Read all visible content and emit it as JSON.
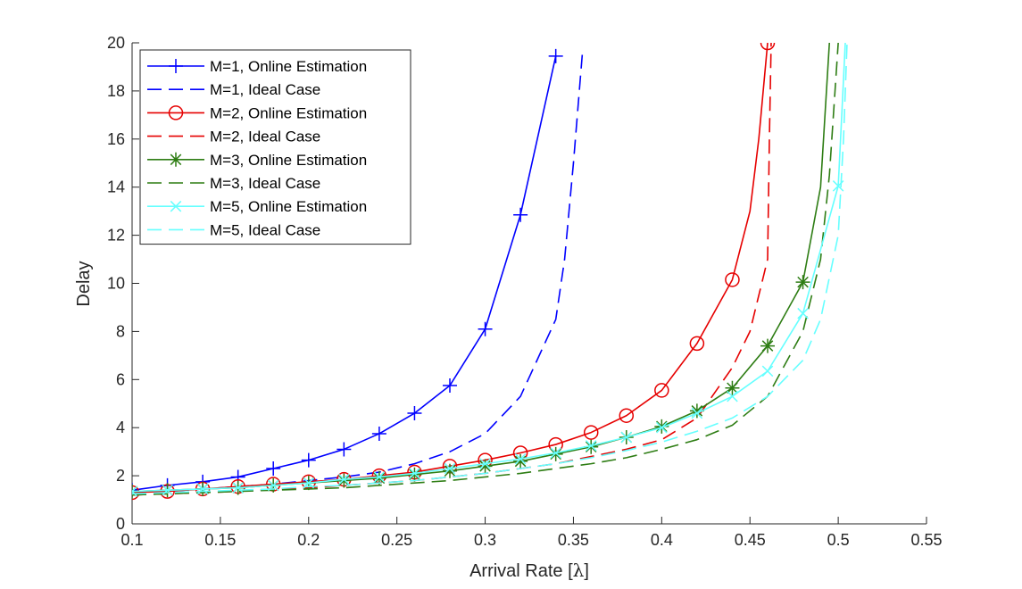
{
  "chart_data": {
    "type": "line",
    "title": "",
    "xlabel": "Arrival Rate [",
    "xlabel_symbol": "λ",
    "xlabel_suffix": "]",
    "ylabel": "Delay",
    "xlim": [
      0.1,
      0.55
    ],
    "ylim": [
      0,
      20
    ],
    "xticks": [
      0.1,
      0.15,
      0.2,
      0.25,
      0.3,
      0.35,
      0.4,
      0.45,
      0.5,
      0.55
    ],
    "xtick_labels": [
      "0.1",
      "0.15",
      "0.2",
      "0.25",
      "0.3",
      "0.35",
      "0.4",
      "0.45",
      "0.5",
      "0.55"
    ],
    "yticks": [
      0,
      2,
      4,
      6,
      8,
      10,
      12,
      14,
      16,
      18,
      20
    ],
    "ytick_labels": [
      "0",
      "2",
      "4",
      "6",
      "8",
      "10",
      "12",
      "14",
      "16",
      "18",
      "20"
    ],
    "grid": false,
    "legend_position": "top-left",
    "series": [
      {
        "name": "M=1, Online Estimation",
        "color": "#0000ff",
        "style": "solid",
        "marker": "plus",
        "x": [
          0.1,
          0.12,
          0.14,
          0.16,
          0.18,
          0.2,
          0.22,
          0.24,
          0.26,
          0.28,
          0.3,
          0.32,
          0.34
        ],
        "y": [
          1.4,
          1.6,
          1.75,
          1.95,
          2.3,
          2.65,
          3.1,
          3.75,
          4.6,
          5.75,
          8.1,
          12.85,
          19.45
        ]
      },
      {
        "name": "M=1, Ideal Case",
        "color": "#0000ff",
        "style": "dashed",
        "marker": "none",
        "x": [
          0.1,
          0.12,
          0.14,
          0.16,
          0.18,
          0.2,
          0.22,
          0.24,
          0.26,
          0.28,
          0.3,
          0.32,
          0.34,
          0.345,
          0.35,
          0.355
        ],
        "y": [
          1.25,
          1.35,
          1.45,
          1.55,
          1.65,
          1.8,
          1.95,
          2.15,
          2.5,
          3.0,
          3.75,
          5.3,
          8.5,
          11.0,
          15.0,
          19.5
        ]
      },
      {
        "name": "M=2, Online Estimation",
        "color": "#e60000",
        "style": "solid",
        "marker": "circle",
        "x": [
          0.1,
          0.12,
          0.14,
          0.16,
          0.18,
          0.2,
          0.22,
          0.24,
          0.26,
          0.28,
          0.3,
          0.32,
          0.34,
          0.36,
          0.38,
          0.4,
          0.42,
          0.44,
          0.45,
          0.455,
          0.46
        ],
        "y": [
          1.3,
          1.35,
          1.45,
          1.55,
          1.65,
          1.75,
          1.85,
          2.0,
          2.15,
          2.4,
          2.65,
          2.95,
          3.3,
          3.8,
          4.5,
          5.55,
          7.5,
          10.15,
          13.0,
          16.0,
          20.0
        ]
      },
      {
        "name": "M=2, Ideal Case",
        "color": "#e60000",
        "style": "dashed",
        "marker": "none",
        "x": [
          0.1,
          0.12,
          0.14,
          0.16,
          0.18,
          0.2,
          0.22,
          0.24,
          0.26,
          0.28,
          0.3,
          0.32,
          0.34,
          0.36,
          0.38,
          0.4,
          0.42,
          0.44,
          0.45,
          0.46,
          0.461,
          0.462
        ],
        "y": [
          1.2,
          1.25,
          1.3,
          1.35,
          1.45,
          1.5,
          1.6,
          1.7,
          1.8,
          1.95,
          2.1,
          2.3,
          2.5,
          2.8,
          3.1,
          3.5,
          4.4,
          6.5,
          8.0,
          11.0,
          16.0,
          20.0
        ]
      },
      {
        "name": "M=3, Online Estimation",
        "color": "#2e7d14",
        "style": "solid",
        "marker": "asterisk",
        "x": [
          0.1,
          0.12,
          0.14,
          0.16,
          0.18,
          0.2,
          0.22,
          0.24,
          0.26,
          0.28,
          0.3,
          0.32,
          0.34,
          0.36,
          0.38,
          0.4,
          0.42,
          0.44,
          0.46,
          0.48,
          0.49,
          0.495
        ],
        "y": [
          1.35,
          1.4,
          1.45,
          1.5,
          1.6,
          1.7,
          1.8,
          1.9,
          2.05,
          2.2,
          2.4,
          2.6,
          2.9,
          3.2,
          3.6,
          4.05,
          4.7,
          5.65,
          7.4,
          10.05,
          14.0,
          20.0
        ]
      },
      {
        "name": "M=3, Ideal Case",
        "color": "#2e7d14",
        "style": "dashed",
        "marker": "none",
        "x": [
          0.1,
          0.12,
          0.14,
          0.16,
          0.18,
          0.2,
          0.22,
          0.24,
          0.26,
          0.28,
          0.3,
          0.32,
          0.34,
          0.36,
          0.38,
          0.4,
          0.42,
          0.44,
          0.46,
          0.48,
          0.49,
          0.495,
          0.5
        ],
        "y": [
          1.2,
          1.25,
          1.3,
          1.35,
          1.4,
          1.45,
          1.5,
          1.6,
          1.7,
          1.8,
          1.95,
          2.1,
          2.3,
          2.5,
          2.75,
          3.1,
          3.5,
          4.1,
          5.3,
          8.0,
          11.0,
          14.5,
          20.0
        ]
      },
      {
        "name": "M=5, Online Estimation",
        "color": "#66ffff",
        "style": "solid",
        "marker": "x",
        "x": [
          0.1,
          0.12,
          0.14,
          0.16,
          0.18,
          0.2,
          0.22,
          0.24,
          0.26,
          0.28,
          0.3,
          0.32,
          0.34,
          0.36,
          0.38,
          0.4,
          0.42,
          0.44,
          0.46,
          0.48,
          0.5,
          0.502,
          0.504
        ],
        "y": [
          1.35,
          1.4,
          1.45,
          1.5,
          1.6,
          1.7,
          1.85,
          1.95,
          2.1,
          2.3,
          2.5,
          2.7,
          2.95,
          3.25,
          3.6,
          4.0,
          4.6,
          5.3,
          6.35,
          8.75,
          14.05,
          17.0,
          20.0
        ]
      },
      {
        "name": "M=5, Ideal Case",
        "color": "#66ffff",
        "style": "dashed",
        "marker": "none",
        "x": [
          0.1,
          0.12,
          0.14,
          0.16,
          0.18,
          0.2,
          0.22,
          0.24,
          0.26,
          0.28,
          0.3,
          0.32,
          0.34,
          0.36,
          0.38,
          0.4,
          0.42,
          0.44,
          0.46,
          0.48,
          0.49,
          0.5,
          0.503,
          0.505
        ],
        "y": [
          1.25,
          1.3,
          1.35,
          1.4,
          1.45,
          1.55,
          1.6,
          1.7,
          1.8,
          1.95,
          2.1,
          2.3,
          2.5,
          2.75,
          3.05,
          3.4,
          3.85,
          4.4,
          5.3,
          6.8,
          8.5,
          12.0,
          16.0,
          20.0
        ]
      }
    ]
  }
}
